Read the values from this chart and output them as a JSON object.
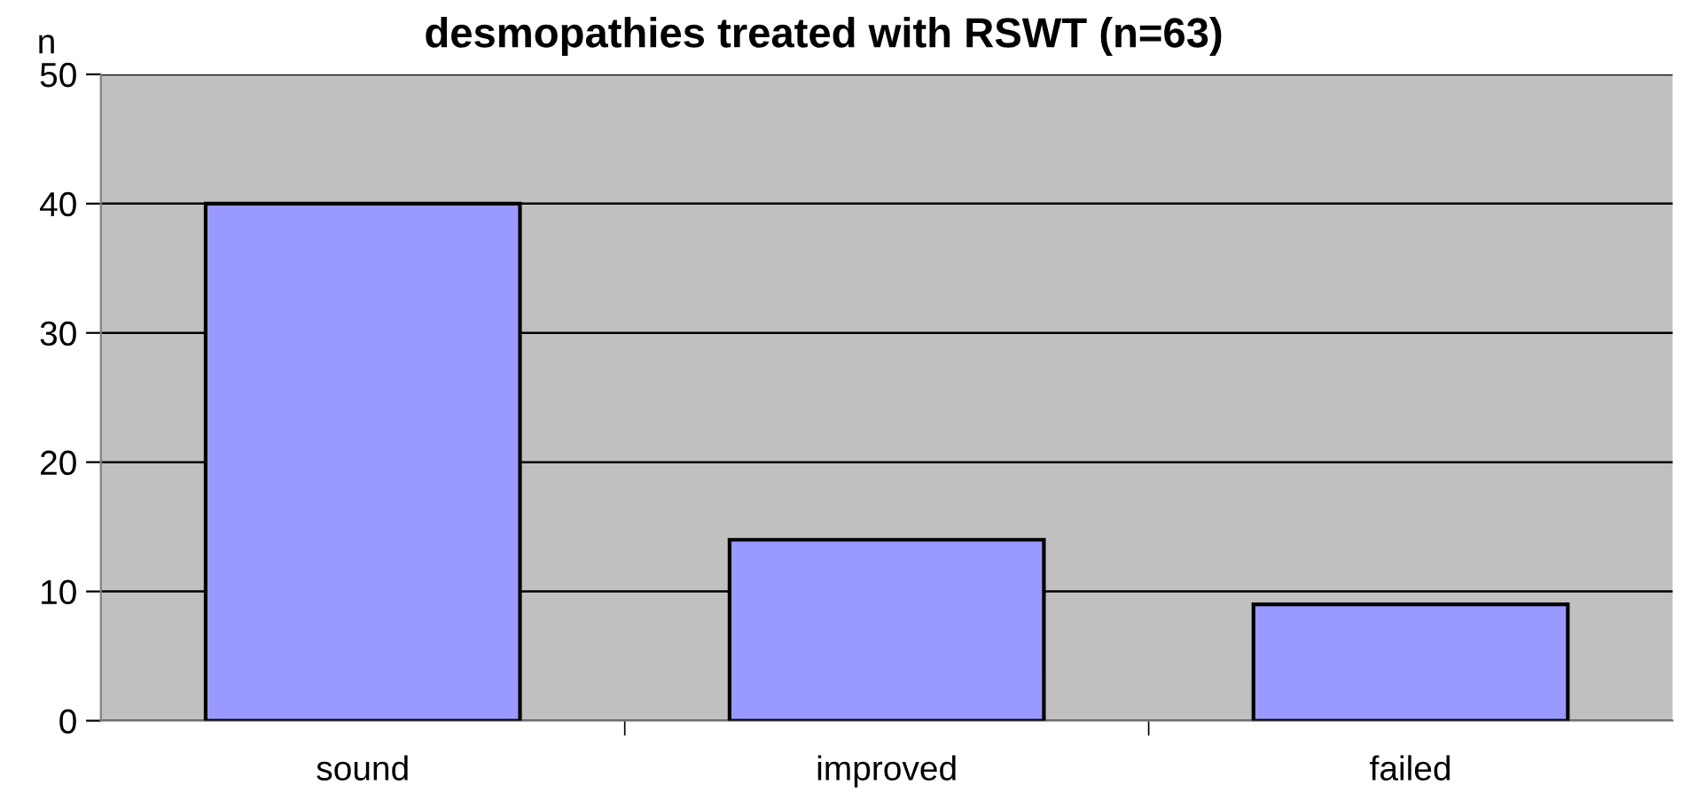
{
  "chart_data": {
    "type": "bar",
    "title": "desmopathies treated with RSWT (n=63)",
    "ylabel": "n",
    "categories": [
      "sound",
      "improved",
      "failed"
    ],
    "values": [
      40,
      14,
      9
    ],
    "color": "#9999ff",
    "ylim": [
      0,
      50
    ],
    "yticks": [
      0,
      10,
      20,
      30,
      40,
      50
    ],
    "grid": "y"
  }
}
